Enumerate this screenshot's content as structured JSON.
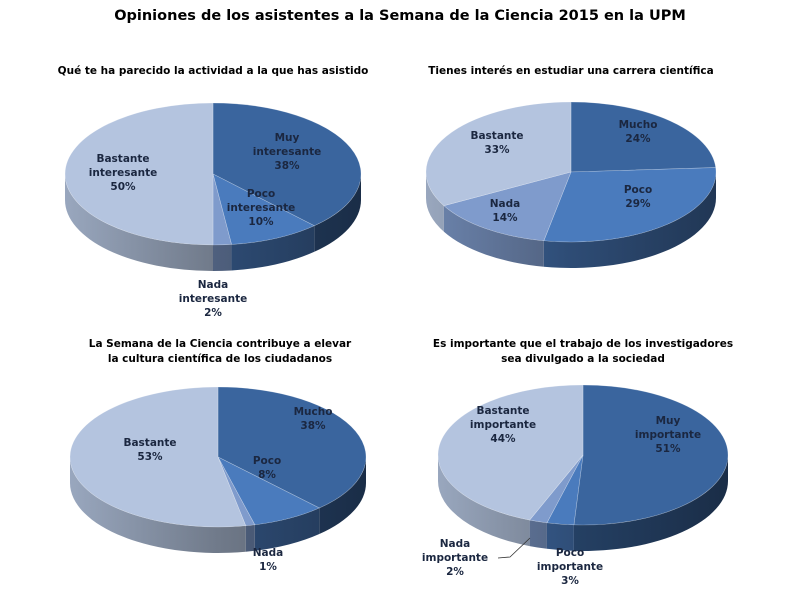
{
  "title": "Opiniones de los asistentes a la Semana de la  Ciencia 2015 en la UPM",
  "colors": {
    "muy": "#3a659e",
    "poco": "#4a7bbd",
    "nada": "#7f9bcc",
    "bastante": "#b4c4df"
  },
  "chart_data": [
    {
      "type": "pie",
      "title": "Qué te ha parecido la actividad a la que has asistido",
      "slices": [
        {
          "label": "Muy\ninteresante",
          "value": 38,
          "text": "38%",
          "color": "#3a659e"
        },
        {
          "label": "Poco\ninteresante",
          "value": 10,
          "text": "10%",
          "color": "#4a7bbd"
        },
        {
          "label": "Nada\ninteresante",
          "value": 2,
          "text": "2%",
          "color": "#7f9bcc"
        },
        {
          "label": "Bastante\ninteresante",
          "value": 50,
          "text": "50%",
          "color": "#b4c4df"
        }
      ]
    },
    {
      "type": "pie",
      "title": "Tienes interés en estudiar una carrera científica",
      "slices": [
        {
          "label": "Mucho",
          "value": 24,
          "text": "24%",
          "color": "#3a659e"
        },
        {
          "label": "Poco",
          "value": 29,
          "text": "29%",
          "color": "#4a7bbd"
        },
        {
          "label": "Nada",
          "value": 14,
          "text": "14%",
          "color": "#7f9bcc"
        },
        {
          "label": "Bastante",
          "value": 33,
          "text": "33%",
          "color": "#b4c4df"
        }
      ]
    },
    {
      "type": "pie",
      "title": "La Semana de la Ciencia contribuye a elevar\nla cultura científica de los ciudadanos",
      "slices": [
        {
          "label": "Mucho",
          "value": 38,
          "text": "38%",
          "color": "#3a659e"
        },
        {
          "label": "Poco",
          "value": 8,
          "text": "8%",
          "color": "#4a7bbd"
        },
        {
          "label": "Nada",
          "value": 1,
          "text": "1%",
          "color": "#7f9bcc"
        },
        {
          "label": "Bastante",
          "value": 53,
          "text": "53%",
          "color": "#b4c4df"
        }
      ]
    },
    {
      "type": "pie",
      "title": "Es importante que el trabajo de los investigadores\nsea divulgado a la sociedad",
      "slices": [
        {
          "label": "Muy\nimportante",
          "value": 51,
          "text": "51%",
          "color": "#3a659e"
        },
        {
          "label": "Poco\nimportante",
          "value": 3,
          "text": "3%",
          "color": "#4a7bbd"
        },
        {
          "label": "Nada\nimportante",
          "value": 2,
          "text": "2%",
          "color": "#7f9bcc"
        },
        {
          "label": "Bastante\nimportante",
          "value": 44,
          "text": "44%",
          "color": "#b4c4df"
        }
      ]
    }
  ]
}
